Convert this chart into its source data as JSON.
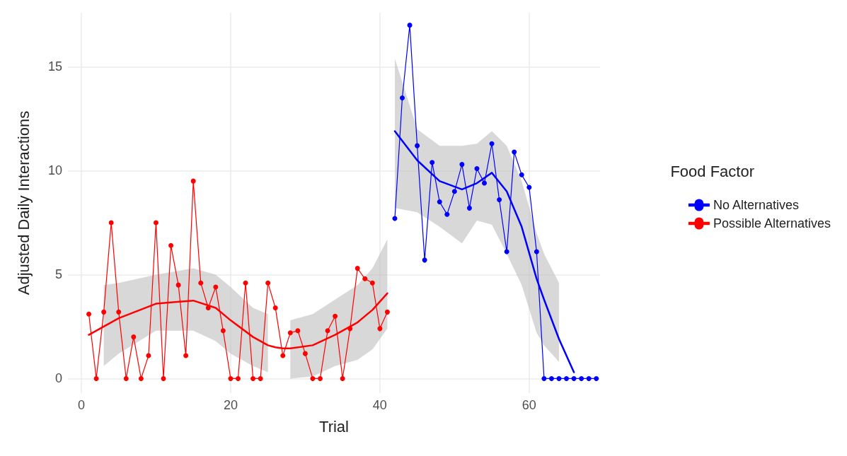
{
  "chart_data": {
    "type": "line",
    "xlabel": "Trial",
    "ylabel": "Adjusted Daily Interactions",
    "legend_title": "Food Factor",
    "legend": "right",
    "grid": true,
    "marker": "circle",
    "line_style": "solid",
    "xlim": [
      -1.8,
      69.5
    ],
    "xticks": [
      0,
      20,
      40,
      60
    ],
    "ylim": [
      -0.7,
      17.6
    ],
    "yticks": [
      0,
      5,
      10,
      15
    ],
    "series": [
      {
        "name": "No Alternatives",
        "color": "#0000ff",
        "x": [
          42,
          43,
          44,
          45,
          46,
          47,
          48,
          49,
          50,
          51,
          52,
          53,
          54,
          55,
          56,
          57,
          58,
          59,
          60,
          61,
          62,
          63,
          64,
          65,
          66,
          67,
          68,
          69
        ],
        "values": [
          7.7,
          13.5,
          17.0,
          11.2,
          5.7,
          10.4,
          8.5,
          7.9,
          9.0,
          10.3,
          8.2,
          10.1,
          9.4,
          11.3,
          8.6,
          6.1,
          10.9,
          9.8,
          9.2,
          6.1,
          0,
          0,
          0,
          0,
          0,
          0,
          0,
          0
        ]
      },
      {
        "name": "Possible Alternatives",
        "color": "#ff0000",
        "x": [
          1,
          2,
          3,
          4,
          5,
          6,
          7,
          8,
          9,
          10,
          11,
          12,
          13,
          14,
          15,
          16,
          17,
          18,
          19,
          20,
          21,
          22,
          23,
          24,
          25,
          26,
          27,
          28,
          29,
          30,
          31,
          32,
          33,
          34,
          35,
          36,
          37,
          38,
          39,
          40,
          41
        ],
        "values": [
          3.1,
          0,
          3.2,
          7.5,
          3.2,
          0,
          2.0,
          0,
          1.1,
          7.5,
          0,
          6.4,
          4.5,
          1.1,
          9.5,
          4.6,
          3.4,
          4.4,
          2.3,
          0,
          0,
          4.6,
          0,
          0,
          4.6,
          3.4,
          1.1,
          2.2,
          2.3,
          1.2,
          0,
          0,
          2.3,
          3.0,
          0,
          2.4,
          5.3,
          4.8,
          4.6,
          2.4,
          3.2
        ]
      },
      {
        "color": "#ff0000",
        "marker": "none",
        "x": [
          1,
          3,
          5,
          10,
          15,
          18,
          20,
          23,
          25,
          26,
          27,
          28,
          31,
          34,
          37,
          39,
          41
        ],
        "values": [
          2.1,
          2.5,
          2.9,
          3.6,
          3.75,
          3.4,
          2.8,
          2.0,
          1.6,
          1.5,
          1.45,
          1.45,
          1.6,
          2.1,
          2.7,
          3.3,
          4.1
        ],
        "lower": [
          null,
          0.6,
          1.2,
          2.3,
          2.3,
          1.8,
          1.2,
          0.6,
          0.3,
          null,
          null,
          0.0,
          0.1,
          0.6,
          0.9,
          1.4,
          2.4
        ],
        "upper": [
          null,
          4.5,
          4.6,
          5.0,
          5.3,
          5.0,
          4.4,
          3.4,
          3.1,
          null,
          null,
          2.8,
          3.1,
          3.8,
          4.5,
          5.3,
          6.7
        ]
      },
      {
        "color": "#0000ff",
        "marker": "none",
        "x": [
          42,
          45,
          48,
          51,
          53,
          55,
          57,
          59,
          61,
          62,
          64,
          66
        ],
        "values": [
          11.9,
          10.5,
          9.5,
          9.1,
          9.4,
          9.9,
          9.0,
          7.3,
          4.8,
          3.8,
          1.9,
          0.3
        ],
        "lower": [
          8.2,
          8.0,
          7.3,
          6.5,
          7.6,
          7.4,
          6.0,
          4.5,
          2.2,
          1.6,
          0.8,
          null
        ],
        "upper": [
          15.4,
          12.0,
          11.2,
          11.2,
          11.3,
          11.9,
          11.2,
          9.5,
          7.0,
          6.0,
          4.6,
          null
        ]
      }
    ]
  }
}
